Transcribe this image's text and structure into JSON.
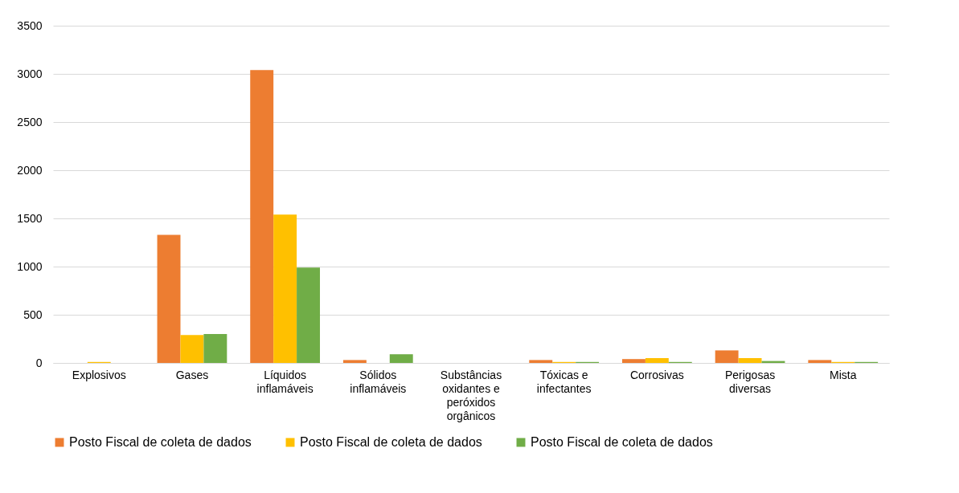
{
  "chart_data": {
    "type": "bar",
    "categories": [
      "Explosivos",
      "Gases",
      "Líquidos inflamáveis",
      "Sólidos inflamáveis",
      "Substâncias oxidantes e peróxidos orgânicos",
      "Tóxicas e infectantes",
      "Corrosivas",
      "Perigosas diversas",
      "Mista"
    ],
    "series": [
      {
        "name": "Posto Fiscal de coleta de dados",
        "color": "#ed7d31",
        "values": [
          0,
          1330,
          3040,
          30,
          0,
          30,
          40,
          130,
          30
        ]
      },
      {
        "name": "Posto Fiscal de coleta de dados",
        "color": "#ffc000",
        "values": [
          10,
          290,
          1540,
          0,
          0,
          10,
          50,
          50,
          10
        ]
      },
      {
        "name": "Posto Fiscal de coleta de dados",
        "color": "#70ad47",
        "values": [
          0,
          300,
          990,
          90,
          0,
          10,
          10,
          20,
          10
        ]
      }
    ],
    "ylim": [
      0,
      3500
    ],
    "yticks": [
      0,
      500,
      1000,
      1500,
      2000,
      2500,
      3000,
      3500
    ],
    "grid": "y",
    "legend": "bottom"
  }
}
